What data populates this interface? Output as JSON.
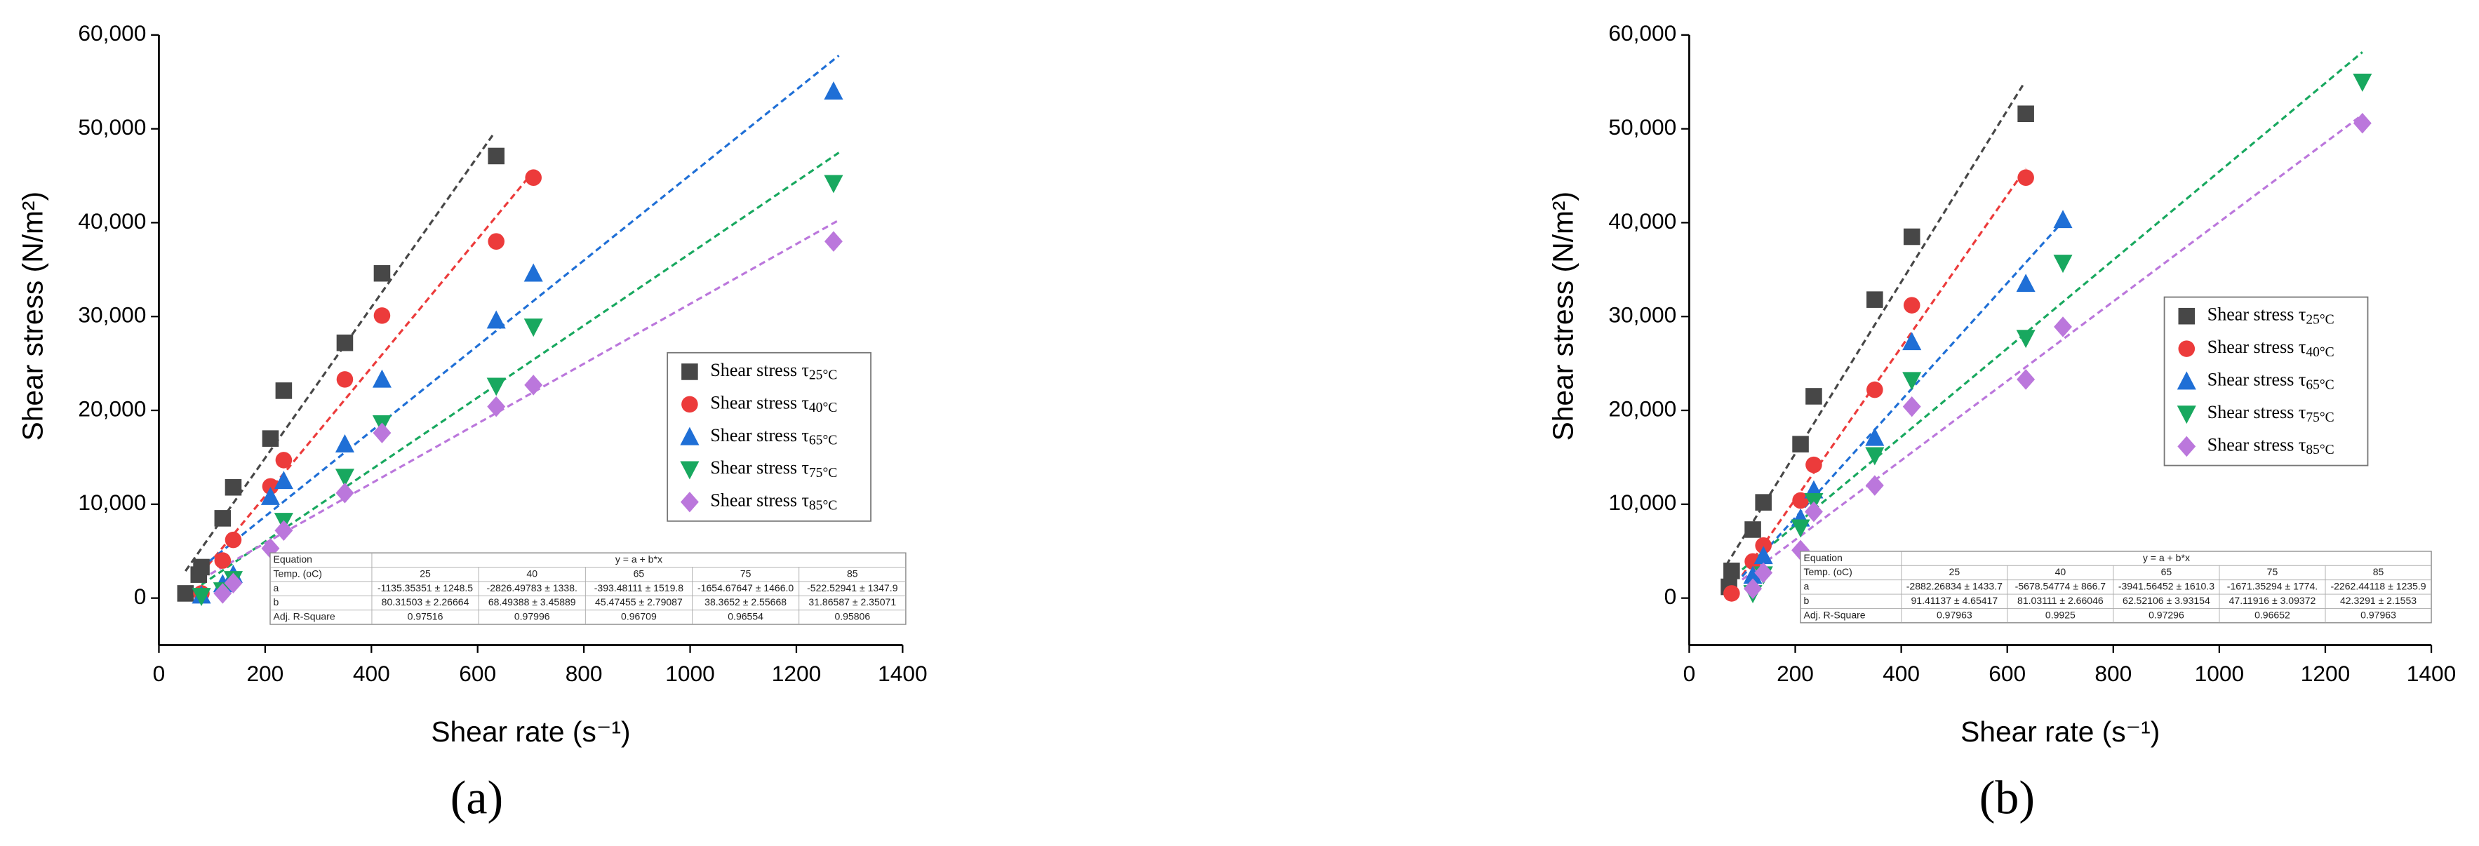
{
  "chart_data": [
    {
      "type": "scatter",
      "label": "(a)",
      "xlabel": "Shear rate (s⁻¹)",
      "ylabel": "Shear stress (N/m²)",
      "xlim": [
        0,
        1400
      ],
      "xticks": [
        0,
        200,
        400,
        600,
        800,
        1000,
        1200,
        1400
      ],
      "ylim": [
        -5000,
        60000
      ],
      "yticks": [
        0,
        {
          "value": 10000,
          "label": "10,000"
        },
        {
          "value": 20000,
          "label": "20,000"
        },
        {
          "value": 30000,
          "label": "30,000"
        },
        {
          "value": 40000,
          "label": "40,000"
        },
        {
          "value": 50000,
          "label": "50,000"
        },
        {
          "value": 60000,
          "label": "60,000"
        }
      ],
      "series": [
        {
          "name": "Shear stress τ25°C",
          "color": "#474747",
          "marker": "square",
          "x": [
            50,
            75,
            80,
            120,
            140,
            210,
            235,
            350,
            420,
            635
          ],
          "values": [
            500,
            2500,
            3300,
            8500,
            11800,
            17000,
            22100,
            27200,
            34600,
            47100
          ]
        },
        {
          "name": "Shear stress τ40°C",
          "color": "#ec3b3b",
          "marker": "circle",
          "x": [
            80,
            120,
            140,
            210,
            235,
            350,
            420,
            635,
            705
          ],
          "values": [
            500,
            4000,
            6200,
            11900,
            14700,
            23300,
            30100,
            38000,
            44800
          ]
        },
        {
          "name": "Shear stress τ65°C",
          "color": "#1f6fd6",
          "marker": "triangle-up",
          "x": [
            80,
            120,
            140,
            210,
            235,
            350,
            420,
            635,
            705,
            1270
          ],
          "values": [
            300,
            1500,
            2500,
            10800,
            12500,
            16400,
            23300,
            29600,
            34600,
            54000
          ]
        },
        {
          "name": "Shear stress τ75°C",
          "color": "#18a85f",
          "marker": "triangle-down",
          "x": [
            80,
            120,
            140,
            235,
            350,
            420,
            635,
            705,
            1270
          ],
          "values": [
            200,
            800,
            2000,
            8200,
            12900,
            18600,
            22600,
            28900,
            44200
          ]
        },
        {
          "name": "Shear stress τ85°C",
          "color": "#bb77dc",
          "marker": "diamond",
          "x": [
            120,
            140,
            210,
            235,
            350,
            420,
            635,
            705,
            1270
          ],
          "values": [
            500,
            1600,
            5300,
            7200,
            11200,
            17600,
            20400,
            22700,
            38000
          ]
        }
      ],
      "fits": [
        {
          "color": "#474747",
          "x": [
            50,
            630
          ],
          "values": [
            2880,
            49460
          ]
        },
        {
          "color": "#ec3b3b",
          "x": [
            80,
            705
          ],
          "values": [
            2653,
            45460
          ]
        },
        {
          "color": "#1f6fd6",
          "x": [
            80,
            1280
          ],
          "values": [
            3245,
            57808
          ]
        },
        {
          "color": "#18a85f",
          "x": [
            80,
            1280
          ],
          "values": [
            1416,
            47460
          ]
        },
        {
          "color": "#bb77dc",
          "x": [
            80,
            1280
          ],
          "values": [
            2027,
            40270
          ]
        }
      ],
      "table": {
        "header": [
          "Equation",
          "y = a + b*x"
        ],
        "rows": [
          [
            "Temp. (oC)",
            "25",
            "40",
            "65",
            "75",
            "85"
          ],
          [
            "a",
            "-1135.35351 ± 1248.5",
            "-2826.49783 ± 1338.",
            "-393.48111 ± 1519.8",
            "-1654.67647 ± 1466.0",
            "-522.52941 ± 1347.9"
          ],
          [
            "b",
            "80.31503 ± 2.26664",
            "68.49388 ± 3.45889",
            "45.47455 ± 2.79087",
            "38.3652 ± 2.55668",
            "31.86587 ± 2.35071"
          ],
          [
            "Adj. R-Square",
            "0.97516",
            "0.97996",
            "0.96709",
            "0.96554",
            "0.95806"
          ]
        ]
      }
    },
    {
      "type": "scatter",
      "label": "(b)",
      "xlabel": "Shear rate (s⁻¹)",
      "ylabel": "Shear stress (N/m²)",
      "xlim": [
        0,
        1400
      ],
      "xticks": [
        0,
        200,
        400,
        600,
        800,
        1000,
        1200,
        1400
      ],
      "ylim": [
        -5000,
        60000
      ],
      "yticks": [
        0,
        {
          "value": 10000,
          "label": "10,000"
        },
        {
          "value": 20000,
          "label": "20,000"
        },
        {
          "value": 30000,
          "label": "30,000"
        },
        {
          "value": 40000,
          "label": "40,000"
        },
        {
          "value": 50000,
          "label": "50,000"
        },
        {
          "value": 60000,
          "label": "60,000"
        }
      ],
      "series": [
        {
          "name": "Shear stress τ25°C",
          "color": "#474747",
          "marker": "square",
          "x": [
            75,
            80,
            120,
            140,
            210,
            235,
            350,
            420,
            635
          ],
          "values": [
            1200,
            2900,
            7300,
            10200,
            16400,
            21500,
            31800,
            38500,
            51600
          ]
        },
        {
          "name": "Shear stress τ40°C",
          "color": "#ec3b3b",
          "marker": "circle",
          "x": [
            80,
            120,
            140,
            210,
            235,
            350,
            420,
            635
          ],
          "values": [
            500,
            3900,
            5600,
            10400,
            14200,
            22200,
            31200,
            44800
          ]
        },
        {
          "name": "Shear stress τ65°C",
          "color": "#1f6fd6",
          "marker": "triangle-up",
          "x": [
            120,
            140,
            210,
            235,
            350,
            420,
            635,
            705
          ],
          "values": [
            2400,
            4500,
            8500,
            11500,
            17100,
            27300,
            33500,
            40300
          ]
        },
        {
          "name": "Shear stress τ75°C",
          "color": "#18a85f",
          "marker": "triangle-down",
          "x": [
            120,
            140,
            210,
            235,
            350,
            420,
            635,
            705,
            1270
          ],
          "values": [
            500,
            2500,
            7500,
            10300,
            15200,
            23200,
            27700,
            35700,
            55000
          ]
        },
        {
          "name": "Shear stress τ85°C",
          "color": "#bb77dc",
          "marker": "diamond",
          "x": [
            120,
            140,
            210,
            235,
            350,
            420,
            635,
            705,
            1270
          ],
          "values": [
            1000,
            2700,
            5100,
            9200,
            12000,
            20400,
            23300,
            28900,
            50600
          ]
        }
      ],
      "fits": [
        {
          "color": "#474747",
          "x": [
            70,
            630
          ],
          "values": [
            3517,
            54710
          ]
        },
        {
          "color": "#ec3b3b",
          "x": [
            100,
            635
          ],
          "values": [
            2425,
            45776
          ]
        },
        {
          "color": "#1f6fd6",
          "x": [
            100,
            705
          ],
          "values": [
            2311,
            40136
          ]
        },
        {
          "color": "#18a85f",
          "x": [
            100,
            1270
          ],
          "values": [
            3041,
            58171
          ]
        },
        {
          "color": "#bb77dc",
          "x": [
            100,
            1270
          ],
          "values": [
            1971,
            51497
          ]
        }
      ],
      "table": {
        "header": [
          "Equation",
          "y = a + b*x"
        ],
        "rows": [
          [
            "Temp. (oC)",
            "25",
            "40",
            "65",
            "75",
            "85"
          ],
          [
            "a",
            "-2882.26834 ± 1433.7",
            "-5678.54774 ± 866.7",
            "-3941.56452 ± 1610.3",
            "-1671.35294 ± 1774.",
            "-2262.44118 ± 1235.9"
          ],
          [
            "b",
            "91.41137 ± 4.65417",
            "81.03111 ± 2.66046",
            "62.52106 ± 3.93154",
            "47.11916 ± 3.09372",
            "42.3291 ± 2.1553"
          ],
          [
            "Adj. R-Square",
            "0.97963",
            "0.9925",
            "0.97296",
            "0.96652",
            "0.97963"
          ]
        ]
      }
    }
  ]
}
